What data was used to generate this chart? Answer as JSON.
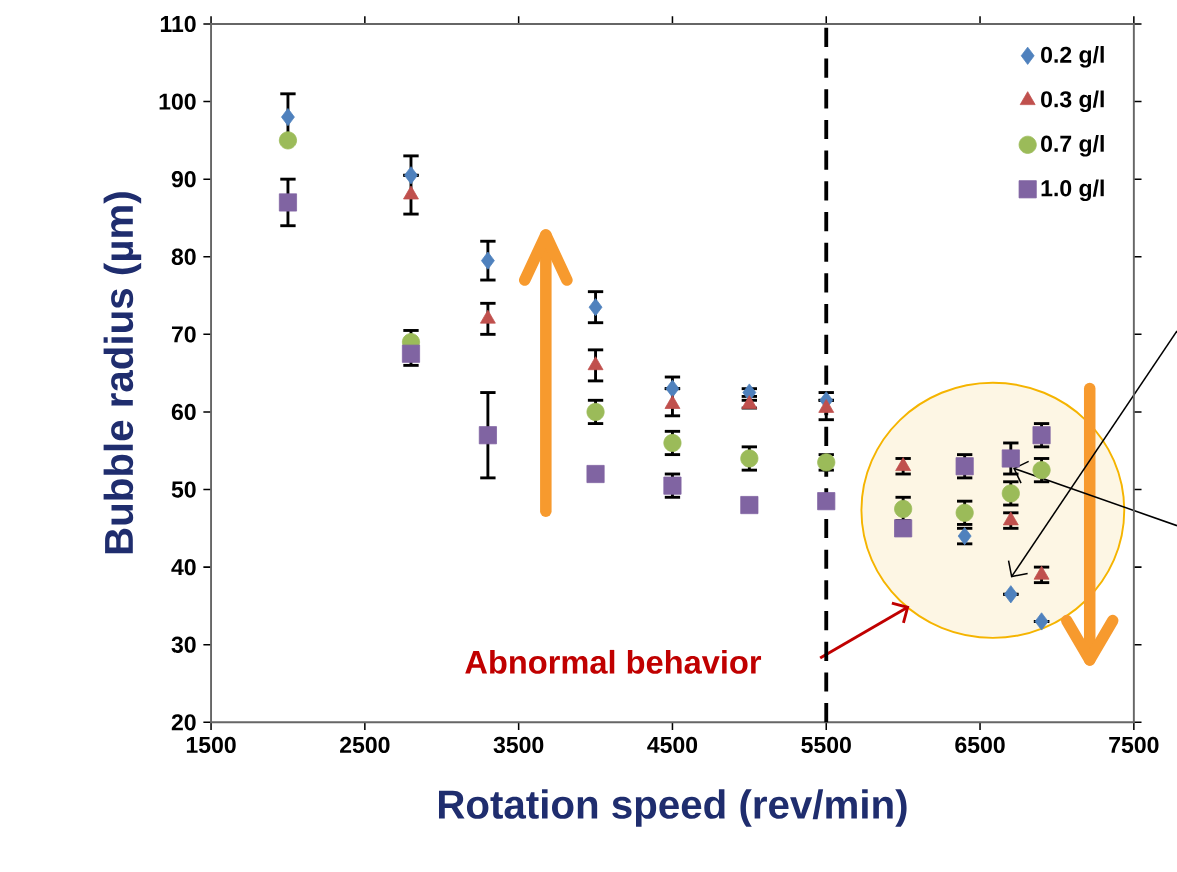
{
  "chart_data": {
    "type": "scatter",
    "xlabel": "Rotation speed (rev/min)",
    "ylabel": "Bubble radius (µm)",
    "x": [
      2000,
      2800,
      3300,
      4000,
      4500,
      5000,
      5500,
      6000,
      6400,
      6700,
      6900
    ],
    "series": [
      {
        "name": "0.2 g/l",
        "color": "#4f81bd",
        "marker": "diamond",
        "values": [
          98,
          90.5,
          79.5,
          73.5,
          63,
          62.5,
          61.5,
          null,
          44,
          36.5,
          33
        ],
        "errors": [
          3,
          null,
          2.5,
          2,
          null,
          0.5,
          null,
          null,
          1,
          null,
          null
        ]
      },
      {
        "name": "0.3 g/l",
        "color": "#c0504d",
        "marker": "triangle",
        "values": [
          null,
          88,
          72,
          66,
          61,
          61,
          60.5,
          53,
          null,
          46,
          39
        ],
        "errors": [
          null,
          [
            85.5,
            93
          ],
          2,
          2,
          [
            59.5,
            64.5
          ],
          0.5,
          [
            59,
            62.5
          ],
          1,
          null,
          1,
          1
        ]
      },
      {
        "name": "0.7 g/l",
        "color": "#9bbb59",
        "marker": "circle",
        "values": [
          95,
          69,
          null,
          60,
          56,
          54,
          53.5,
          47.5,
          47,
          49.5,
          52.5
        ],
        "errors": [
          null,
          null,
          null,
          1.5,
          1.5,
          1.5,
          1,
          1.5,
          1.5,
          1.5,
          1.5
        ]
      },
      {
        "name": "1.0 g/l",
        "color": "#8064a2",
        "marker": "square",
        "values": [
          87,
          67.5,
          57,
          52,
          50.5,
          48,
          48.5,
          45,
          53,
          54,
          57
        ],
        "errors": [
          3,
          [
            66,
            70.5
          ],
          5.5,
          null,
          1.5,
          null,
          null,
          null,
          1.5,
          2,
          1.5
        ]
      }
    ],
    "xlim": [
      1500,
      7500
    ],
    "xticks": [
      1500,
      2500,
      3500,
      4500,
      5500,
      6500,
      7500
    ],
    "ylim": [
      20,
      110
    ],
    "yticks": [
      20,
      30,
      40,
      50,
      60,
      70,
      80,
      90,
      100,
      110
    ],
    "ref_lines": [
      {
        "axis": "x",
        "value": 5500,
        "color": "#000000",
        "line_style": "dashed"
      }
    ],
    "annotations": [
      "Abnormal behavior"
    ],
    "legend": "top right",
    "grid": false
  }
}
